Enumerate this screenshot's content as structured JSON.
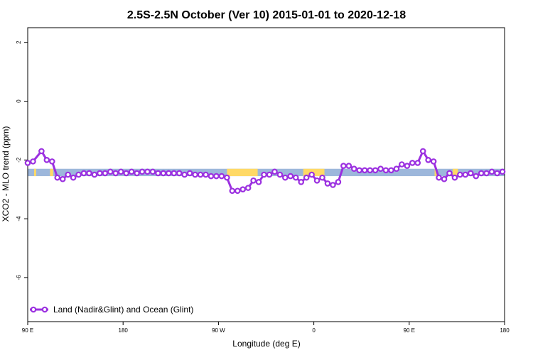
{
  "chart_data": {
    "type": "line",
    "title": "2.5S-2.5N October (Ver 10)   2015-01-01 to 2020-12-18",
    "xlabel": "Longitude (deg E)",
    "ylabel": "XCO2 - MLO trend (ppm)",
    "xlim": [
      90,
      540
    ],
    "ylim": [
      -7.5,
      2.5
    ],
    "x_ticks": [
      {
        "value": 90,
        "label": "90 E"
      },
      {
        "value": 180,
        "label": "180"
      },
      {
        "value": 270,
        "label": "90 W"
      },
      {
        "value": 360,
        "label": "0"
      },
      {
        "value": 450,
        "label": "90 E"
      },
      {
        "value": 540,
        "label": "180"
      }
    ],
    "y_ticks": [
      {
        "value": 2,
        "label": "2"
      },
      {
        "value": 0,
        "label": "0"
      },
      {
        "value": -2,
        "label": "-2"
      },
      {
        "value": -4,
        "label": "-4"
      },
      {
        "value": -6,
        "label": "-6"
      }
    ],
    "band": {
      "y_range": [
        -2.55,
        -2.3
      ],
      "land_color": "#FFD966",
      "ocean_color": "#9DB7DB",
      "land_segments": [
        [
          96,
          98
        ],
        [
          111,
          114
        ],
        [
          278,
          307
        ],
        [
          350,
          370
        ],
        [
          474,
          476
        ],
        [
          491,
          496
        ]
      ]
    },
    "series": [
      {
        "name": "Land (Nadir&Glint) and Ocean (Glint)",
        "color": "#9B30E0",
        "x": [
          90,
          95,
          103,
          108,
          113,
          118,
          123,
          128,
          133,
          138,
          143,
          148,
          153,
          158,
          163,
          168,
          173,
          178,
          183,
          188,
          193,
          198,
          203,
          208,
          213,
          218,
          223,
          228,
          233,
          238,
          243,
          248,
          253,
          258,
          263,
          268,
          273,
          278,
          283,
          288,
          293,
          298,
          303,
          308,
          313,
          318,
          323,
          328,
          333,
          338,
          343,
          348,
          353,
          358,
          363,
          368,
          373,
          378,
          383,
          388,
          393,
          398,
          403,
          408,
          413,
          418,
          423,
          428,
          433,
          438,
          443,
          448,
          453,
          458,
          463,
          468,
          473,
          478,
          483,
          488,
          493,
          498,
          503,
          508,
          513,
          518,
          523,
          528,
          533,
          538
        ],
        "values": [
          -2.1,
          -2.05,
          -1.7,
          -2.0,
          -2.05,
          -2.6,
          -2.65,
          -2.5,
          -2.6,
          -2.5,
          -2.45,
          -2.45,
          -2.5,
          -2.45,
          -2.45,
          -2.4,
          -2.45,
          -2.4,
          -2.45,
          -2.4,
          -2.45,
          -2.4,
          -2.4,
          -2.4,
          -2.45,
          -2.45,
          -2.45,
          -2.45,
          -2.45,
          -2.5,
          -2.45,
          -2.5,
          -2.5,
          -2.5,
          -2.55,
          -2.55,
          -2.55,
          -2.6,
          -3.05,
          -3.05,
          -3.0,
          -2.95,
          -2.7,
          -2.75,
          -2.5,
          -2.5,
          -2.4,
          -2.5,
          -2.6,
          -2.55,
          -2.6,
          -2.75,
          -2.6,
          -2.5,
          -2.7,
          -2.6,
          -2.8,
          -2.85,
          -2.75,
          -2.2,
          -2.2,
          -2.3,
          -2.35,
          -2.35,
          -2.35,
          -2.35,
          -2.3,
          -2.35,
          -2.35,
          -2.3,
          -2.15,
          -2.2,
          -2.1,
          -2.1,
          -1.7,
          -2.0,
          -2.05,
          -2.6,
          -2.65,
          -2.45,
          -2.6,
          -2.5,
          -2.5,
          -2.45,
          -2.55,
          -2.45,
          -2.45,
          -2.4,
          -2.45,
          -2.4
        ]
      }
    ],
    "legend": {
      "placement": "bottom-left",
      "box": false
    },
    "grid": false
  }
}
